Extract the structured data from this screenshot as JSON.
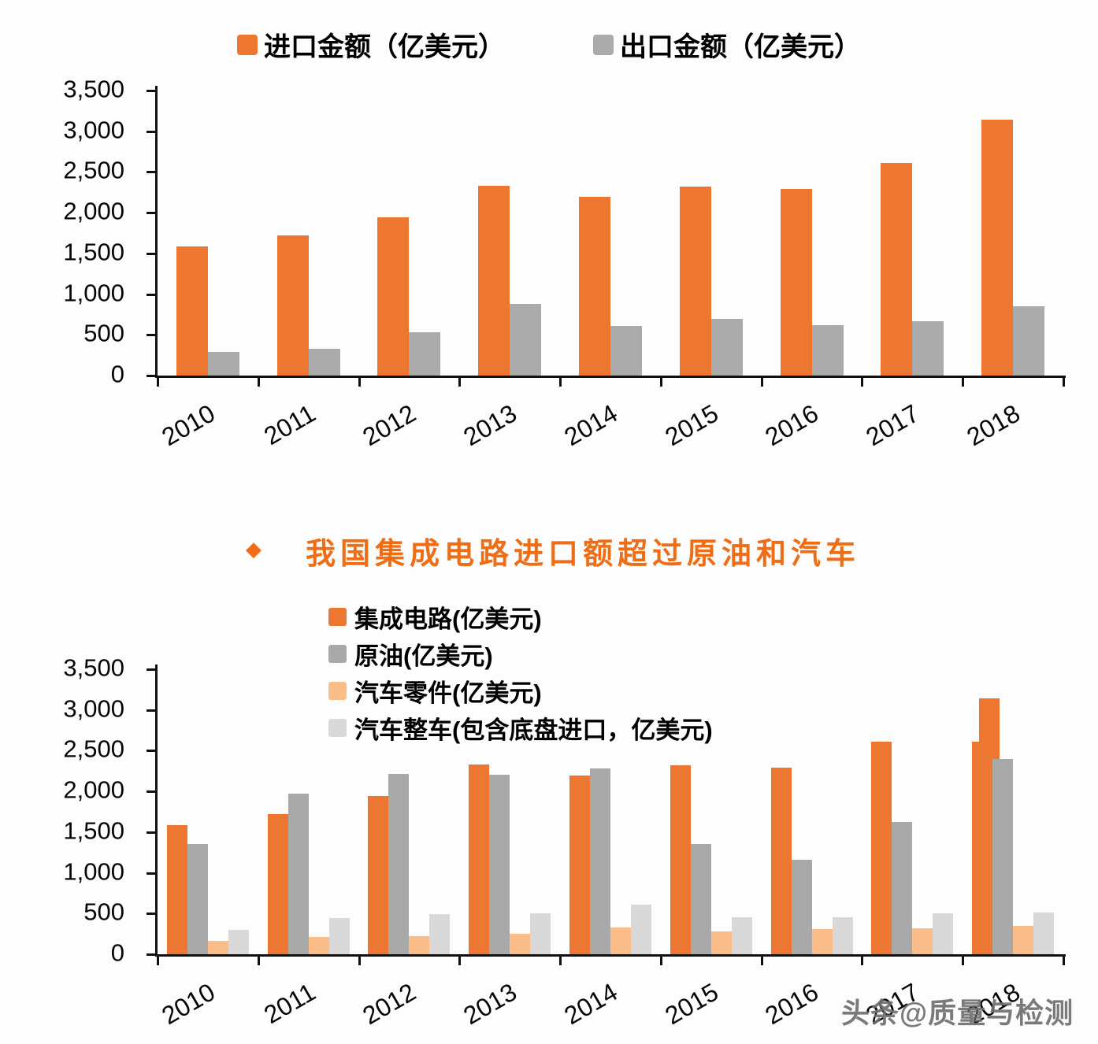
{
  "page": {
    "background": "#FDFDFD",
    "axis_color": "#111111",
    "text_color": "#050505"
  },
  "watermark": {
    "text": "头条@质量与检测",
    "color": "#6F6F6F"
  },
  "chart_data": [
    {
      "type": "bar",
      "title": "",
      "categories": [
        "2010",
        "2011",
        "2012",
        "2013",
        "2014",
        "2015",
        "2016",
        "2017",
        "2018"
      ],
      "series": [
        {
          "name": "进口金额（亿美元）",
          "color": "#ED7630",
          "values": [
            1590,
            1720,
            1940,
            2330,
            2190,
            2320,
            2290,
            2610,
            3140
          ]
        },
        {
          "name": "出口金额（亿美元）",
          "color": "#ABABAB",
          "values": [
            290,
            325,
            535,
            880,
            610,
            695,
            615,
            670,
            850
          ]
        }
      ],
      "ylim": [
        0,
        3500
      ],
      "ytick_step": 500,
      "yticklabels": [
        "3,500",
        "3,000",
        "2,500",
        "2,000",
        "1,500",
        "1,000",
        "500",
        "0"
      ],
      "legend_position": "top-center",
      "grid": false
    },
    {
      "type": "bar",
      "title": "我国集成电路进口额超过原油和汽车",
      "title_bullet": "◆",
      "title_color": "#EE6D15",
      "categories": [
        "2010",
        "2011",
        "2012",
        "2013",
        "2014",
        "2015",
        "2016",
        "2017",
        "2018"
      ],
      "series": [
        {
          "name": "集成电路(亿美元)",
          "color": "#ED7630",
          "values": [
            1590,
            1720,
            1940,
            2330,
            2190,
            2320,
            2290,
            2610,
            3140
          ]
        },
        {
          "name": "原油(亿美元)",
          "color": "#A9A9A9",
          "values": [
            1355,
            1970,
            2210,
            2200,
            2285,
            1350,
            1165,
            1620,
            2400
          ]
        },
        {
          "name": "汽车零件(亿美元)",
          "color": "#FBBE8B",
          "values": [
            160,
            210,
            225,
            255,
            330,
            280,
            305,
            320,
            350
          ]
        },
        {
          "name": "汽车整车(包含底盘进口，亿美元)",
          "color": "#D9D9D9",
          "values": [
            300,
            440,
            490,
            505,
            610,
            450,
            450,
            505,
            510
          ]
        }
      ],
      "anomaly": {
        "category": "2018",
        "series": "集成电路(亿美元)",
        "ghost_value": 2610,
        "note": "duplicated shorter orange bar visible behind-left of the 2018 集成电路 bar"
      },
      "ylim": [
        0,
        3500
      ],
      "ytick_step": 500,
      "yticklabels": [
        "3,500",
        "3,000",
        "2,500",
        "2,000",
        "1,500",
        "1,000",
        "500",
        "0"
      ],
      "legend_position": "inside-top-left-of-plot",
      "grid": false
    }
  ]
}
